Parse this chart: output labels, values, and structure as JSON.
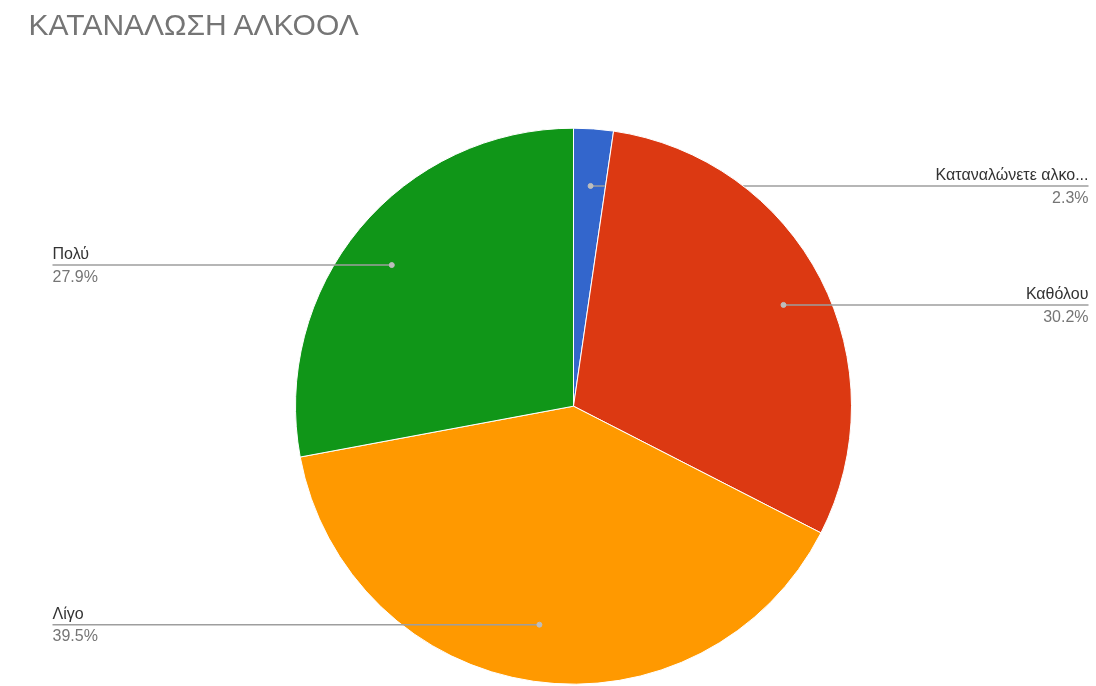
{
  "chart_data": {
    "type": "pie",
    "title": "ΚΑΤΑΝΑΛΩΣΗ ΑΛΚΟΟΛ",
    "categories": [
      "Καταναλώνετε αλκο...",
      "Καθόλου",
      "Λίγο",
      "Πολύ"
    ],
    "values": [
      2.3,
      30.2,
      39.5,
      27.9
    ],
    "colors": [
      "#3366cc",
      "#dc3912",
      "#ff9900",
      "#109618"
    ],
    "value_labels": [
      "2.3%",
      "30.2%",
      "39.5%",
      "27.9%"
    ]
  }
}
